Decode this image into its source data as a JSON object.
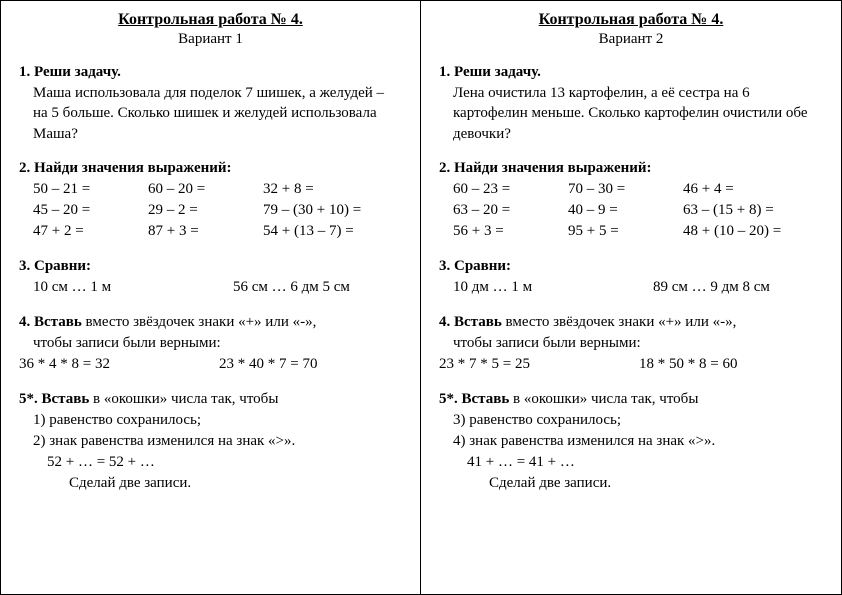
{
  "variants": [
    {
      "title": "Контрольная работа № 4.",
      "subtitle": "Вариант 1",
      "t1": {
        "num": "1. Реши задачу.",
        "text": "Маша использовала для поделок 7  шишек, а желудей – на 5 больше. Сколько шишек и желудей использовала Маша?"
      },
      "t2": {
        "num": "2. Найди значения выражений:",
        "rows": [
          {
            "c1": "50 – 21 =",
            "c2": "60 – 20 =",
            "c3": "32 + 8 ="
          },
          {
            "c1": "45 – 20 =",
            "c2": "29 – 2 =",
            "c3": "79 – (30 + 10) ="
          },
          {
            "c1": "47 + 2 =",
            "c2": "87 + 3 =",
            "c3": "54 + (13 – 7) ="
          }
        ]
      },
      "t3": {
        "num": "3. Сравни:",
        "c1": "10 см … 1 м",
        "c2": "56 см … 6 дм 5 см"
      },
      "t4": {
        "num": "4. Вставь",
        "rest": " вместо звёздочек знаки «+» или «-»,",
        "line2": "чтобы  записи были верными:",
        "s1": "36 * 4 * 8  = 32",
        "s2": "23 * 40 * 7 = 70"
      },
      "t5": {
        "num": " 5*. Вставь",
        "rest": " в «окошки» числа так, чтобы",
        "l1": "1) равенство сохранилось;",
        "l2": "2) знак равенства изменился на знак  «>».",
        "l3": "52 + … =  52 + …",
        "l4": "Сделай две записи."
      }
    },
    {
      "title": "Контрольная работа № 4.",
      "subtitle": "Вариант 2",
      "t1": {
        "num": "1. Реши задачу.",
        "text": "Лена очистила 13 картофелин, а её сестра на 6 картофелин меньше. Сколько картофелин очистили обе девочки?"
      },
      "t2": {
        "num": "2. Найди значения выражений:",
        "rows": [
          {
            "c1": "60 – 23 =",
            "c2": "70 – 30 =",
            "c3": "46 + 4 ="
          },
          {
            "c1": "63 – 20 =",
            "c2": "40 – 9 =",
            "c3": "63 – (15 + 8) ="
          },
          {
            "c1": "56 + 3 =",
            "c2": "95 + 5 =",
            "c3": "48 + (10 – 20) ="
          }
        ]
      },
      "t3": {
        "num": "3. Сравни:",
        "c1": "10 дм … 1 м",
        "c2": "89 см … 9 дм 8 см"
      },
      "t4": {
        "num": "4. Вставь",
        "rest": " вместо звёздочек знаки «+» или «-»,",
        "line2": "чтобы  записи были верными:",
        "s1": "23 * 7 * 5  = 25",
        "s2": "18 * 50 * 8 = 60"
      },
      "t5": {
        "num": " 5*. Вставь",
        "rest": " в «окошки» числа так, чтобы",
        "l1": "3) равенство сохранилось;",
        "l2": "4) знак равенства изменился на знак  «>».",
        "l3": "41 + … =  41 + …",
        "l4": "Сделай две записи."
      }
    }
  ]
}
